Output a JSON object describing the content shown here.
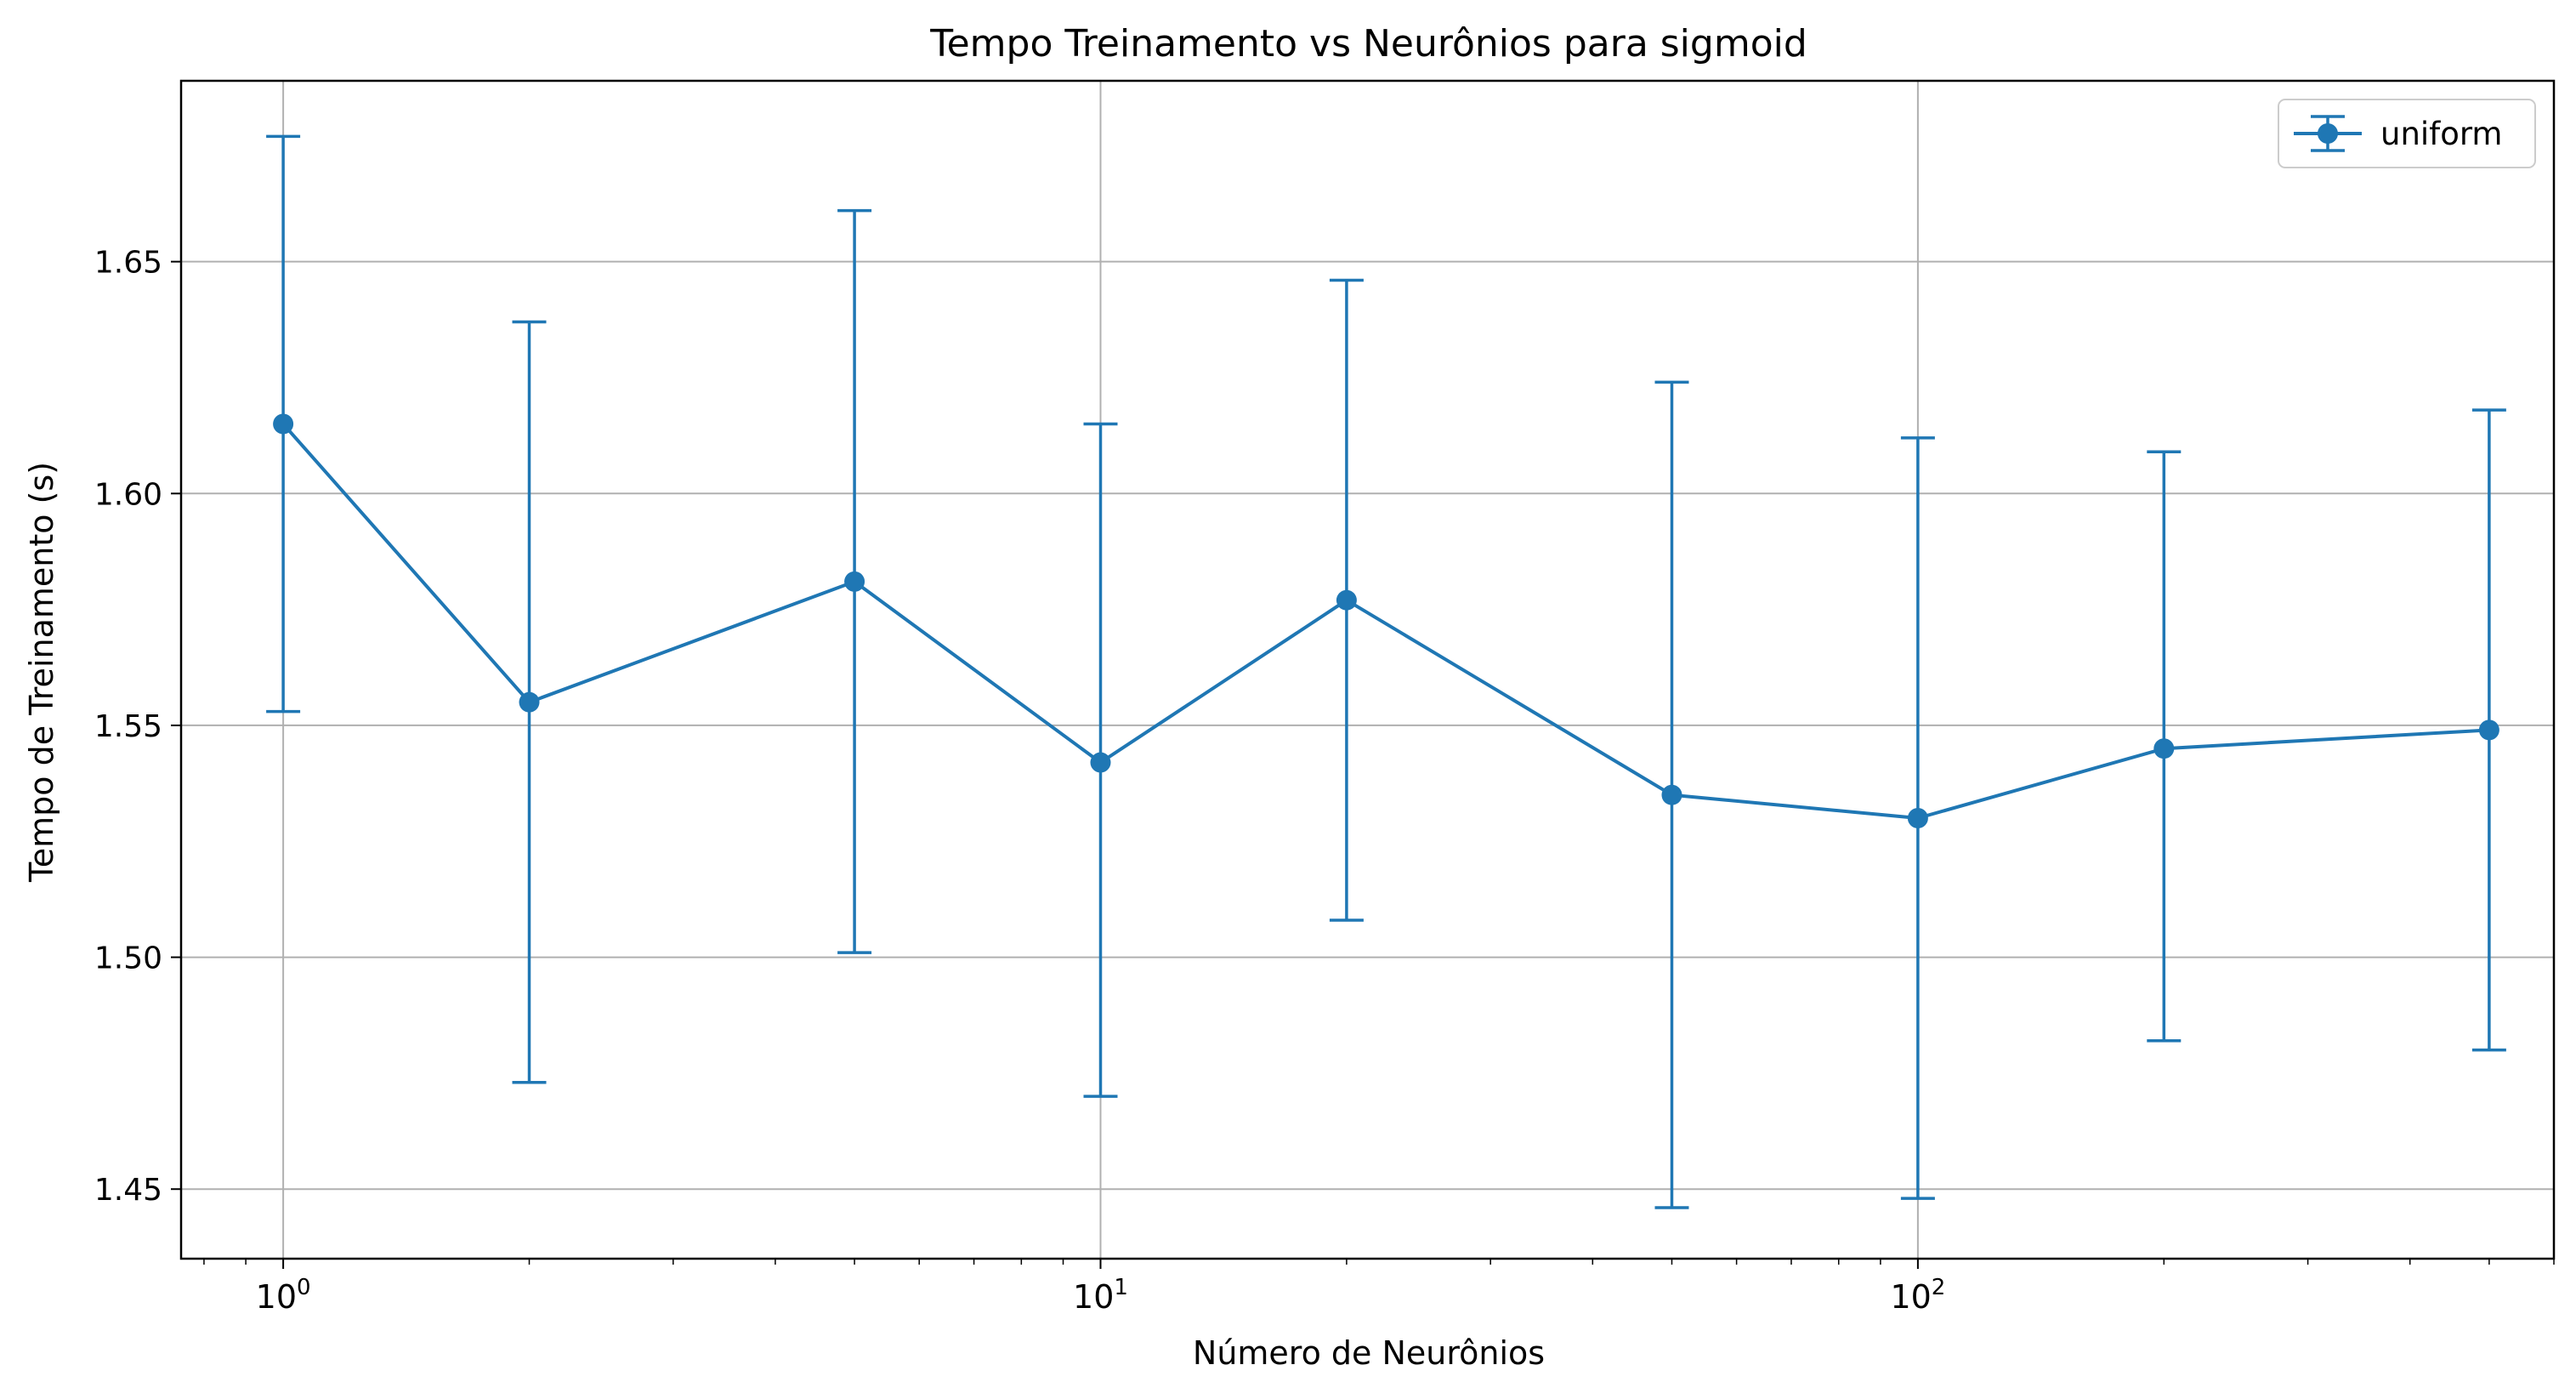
{
  "chart_data": {
    "type": "line",
    "title": "Tempo Treinamento vs Neurônios para sigmoid",
    "xlabel": "Número de Neurônios",
    "ylabel": "Tempo de Treinamento (s)",
    "x_scale": "log",
    "xlim": [
      0.75,
      600
    ],
    "ylim": [
      1.435,
      1.689
    ],
    "grid": true,
    "legend_position": "top-right",
    "x_ticks": [
      {
        "base": "10",
        "exp": "0",
        "value": 1
      },
      {
        "base": "10",
        "exp": "1",
        "value": 10
      },
      {
        "base": "10",
        "exp": "2",
        "value": 100
      }
    ],
    "y_ticks": [
      {
        "label": "1.45",
        "value": 1.45
      },
      {
        "label": "1.50",
        "value": 1.5
      },
      {
        "label": "1.55",
        "value": 1.55
      },
      {
        "label": "1.60",
        "value": 1.6
      },
      {
        "label": "1.65",
        "value": 1.65
      }
    ],
    "series": [
      {
        "name": "uniform",
        "color": "#1f77b4",
        "marker": "circle",
        "points": [
          {
            "x": 1,
            "y": 1.615,
            "err_low": 1.553,
            "err_high": 1.677
          },
          {
            "x": 2,
            "y": 1.555,
            "err_low": 1.473,
            "err_high": 1.637
          },
          {
            "x": 5,
            "y": 1.581,
            "err_low": 1.501,
            "err_high": 1.661
          },
          {
            "x": 10,
            "y": 1.542,
            "err_low": 1.47,
            "err_high": 1.615
          },
          {
            "x": 20,
            "y": 1.577,
            "err_low": 1.508,
            "err_high": 1.646
          },
          {
            "x": 50,
            "y": 1.535,
            "err_low": 1.446,
            "err_high": 1.624
          },
          {
            "x": 100,
            "y": 1.53,
            "err_low": 1.448,
            "err_high": 1.612
          },
          {
            "x": 200,
            "y": 1.545,
            "err_low": 1.482,
            "err_high": 1.609
          },
          {
            "x": 500,
            "y": 1.549,
            "err_low": 1.48,
            "err_high": 1.618
          }
        ]
      }
    ]
  }
}
